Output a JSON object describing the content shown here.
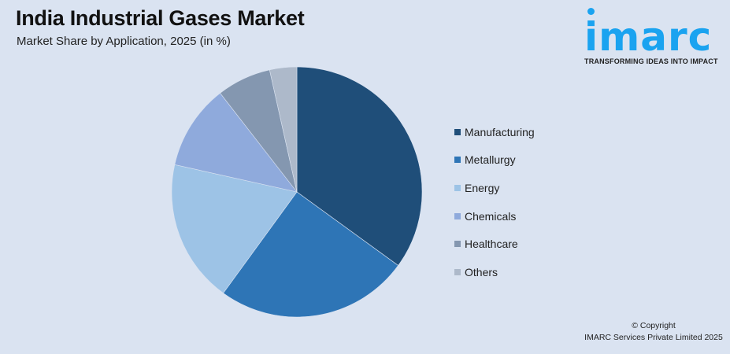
{
  "header": {
    "title": "India Industrial Gases Market",
    "subtitle": "Market Share by Application, 2025 (in %)"
  },
  "logo": {
    "name": "imarc",
    "tagline": "TRANSFORMING IDEAS INTO IMPACT",
    "color": "#1aa3f0"
  },
  "legend": {
    "items": [
      {
        "label": "Manufacturing",
        "color": "#1f4e79"
      },
      {
        "label": "Metallurgy",
        "color": "#2e75b6"
      },
      {
        "label": "Energy",
        "color": "#9dc3e6"
      },
      {
        "label": "Chemicals",
        "color": "#8faadc"
      },
      {
        "label": "Healthcare",
        "color": "#8497b0"
      },
      {
        "label": "Others",
        "color": "#adb9ca"
      }
    ]
  },
  "footer": {
    "copyright_line1": "© Copyright",
    "copyright_line2": "IMARC Services Private Limited 2025"
  },
  "chart_data": {
    "type": "pie",
    "title": "India Industrial Gases Market",
    "subtitle": "Market Share by Application, 2025 (in %)",
    "categories": [
      "Manufacturing",
      "Metallurgy",
      "Energy",
      "Chemicals",
      "Healthcare",
      "Others"
    ],
    "values": [
      35,
      25,
      18.5,
      11,
      7,
      3.5
    ],
    "colors": [
      "#1f4e79",
      "#2e75b6",
      "#9dc3e6",
      "#8faadc",
      "#8497b0",
      "#adb9ca"
    ],
    "start_angle_deg": 0,
    "direction": "clockwise",
    "legend_position": "right",
    "data_labels": false
  }
}
